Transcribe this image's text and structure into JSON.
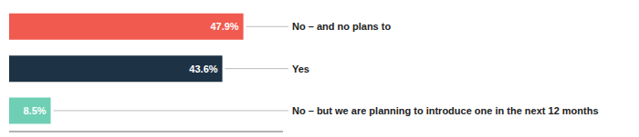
{
  "chart_data": {
    "type": "bar",
    "orientation": "horizontal",
    "categories": [
      "No – and no plans to",
      "Yes",
      "No – but we are planning to introduce one in the next 12 months"
    ],
    "values": [
      47.9,
      43.6,
      8.5
    ],
    "value_labels": [
      "47.9%",
      "43.6%",
      "8.5%"
    ],
    "colors": [
      "#f05a4f",
      "#1d3245",
      "#6ecfb5"
    ],
    "xlim": [
      0,
      56
    ],
    "data_labels": true,
    "tick_labels": false
  }
}
